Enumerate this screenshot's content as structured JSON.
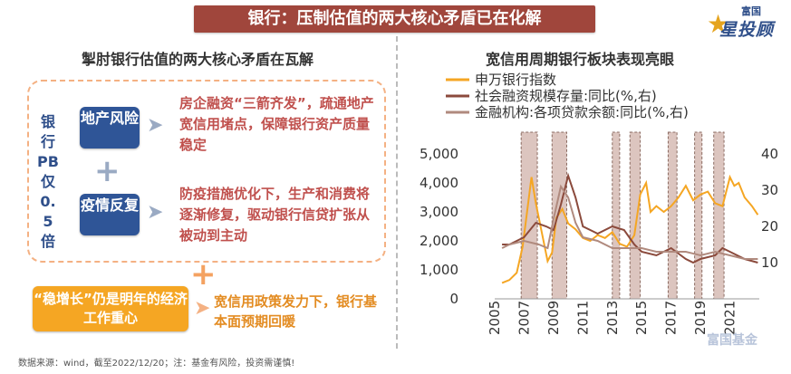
{
  "banner": {
    "title": "银行：压制估值的两大核心矛盾已在化解"
  },
  "logo": {
    "top": "富国",
    "main": "星投顾"
  },
  "left": {
    "heading": "掣肘银行估值的两大核心矛盾在瓦解",
    "pb_label": "银行PB仅0.5倍",
    "boxes": [
      {
        "label": "地产风险",
        "text": "房企融资“三箭齐发”，疏通地产宽信用堵点，保障银行资产质量稳定"
      },
      {
        "label": "疫情反复",
        "text": "防疫措施优化下，生产和消费将逐渐修复，驱动银行信贷扩张从被动到主动"
      }
    ],
    "plus_symbol": "+",
    "bottom_box": "“稳增长”仍是明年的经济工作重心",
    "bottom_text": "宽信用政策发力下，银行基本面预期回暖"
  },
  "right": {
    "heading": "宽信用周期银行板块表现亮眼"
  },
  "chart_data": {
    "type": "line",
    "title": "宽信用周期银行板块表现亮眼",
    "series": [
      {
        "name": "申万银行指数",
        "color": "#f5a623",
        "axis": "left",
        "x": [
          2005.5,
          2006.0,
          2006.5,
          2006.9,
          2007.2,
          2007.5,
          2007.8,
          2008.2,
          2008.6,
          2008.9,
          2009.2,
          2009.6,
          2010.0,
          2010.5,
          2011.0,
          2011.5,
          2012.0,
          2012.5,
          2013.0,
          2013.5,
          2014.0,
          2014.5,
          2014.9,
          2015.3,
          2015.6,
          2016.0,
          2016.5,
          2017.0,
          2017.5,
          2018.0,
          2018.5,
          2019.0,
          2019.5,
          2020.0,
          2020.5,
          2021.0,
          2021.3,
          2021.6,
          2022.0,
          2022.5,
          2022.9
        ],
        "y": [
          550,
          650,
          900,
          1800,
          3000,
          4200,
          3300,
          2300,
          1300,
          1600,
          2800,
          3100,
          2600,
          2400,
          2100,
          2000,
          2200,
          2100,
          2300,
          1900,
          1800,
          2200,
          3600,
          4000,
          3000,
          3200,
          3000,
          3200,
          3500,
          3900,
          3400,
          3600,
          3700,
          3300,
          3200,
          4200,
          3900,
          4000,
          3500,
          3200,
          2900
        ]
      },
      {
        "name": "社会融资规模存量:同比(%,右)",
        "color": "#8b4a3c",
        "axis": "right",
        "x": [
          2005.5,
          2006.0,
          2007.0,
          2007.8,
          2008.5,
          2009.0,
          2009.5,
          2010.0,
          2010.5,
          2011.0,
          2012.0,
          2013.0,
          2013.8,
          2014.5,
          2015.0,
          2016.0,
          2017.0,
          2018.0,
          2018.5,
          2019.0,
          2020.0,
          2020.5,
          2021.0,
          2022.0,
          2022.9
        ],
        "y": [
          15,
          15,
          17,
          21,
          20,
          19,
          26,
          34,
          28,
          20,
          18,
          20,
          19,
          15,
          13,
          12,
          14,
          11,
          10,
          11,
          12,
          14,
          13,
          11,
          10
        ]
      },
      {
        "name": "金融机构:各项贷款余额:同比(%,右)",
        "color": "#b08a7e",
        "axis": "right",
        "x": [
          2005.5,
          2006.0,
          2007.0,
          2008.0,
          2008.6,
          2009.0,
          2009.5,
          2010.0,
          2010.5,
          2011.0,
          2012.0,
          2013.0,
          2014.0,
          2015.0,
          2016.0,
          2017.0,
          2018.0,
          2019.0,
          2020.0,
          2021.0,
          2022.0,
          2022.9
        ],
        "y": [
          14,
          15,
          16,
          15,
          14,
          22,
          31,
          28,
          21,
          17,
          16,
          14,
          14,
          14,
          13,
          13,
          13,
          12,
          13,
          12,
          11,
          11
        ]
      }
    ],
    "x_ticks": [
      "2005",
      "2007",
      "2009",
      "2011",
      "2013",
      "2015",
      "2017",
      "2019",
      "2021"
    ],
    "y_left": {
      "ticks": [
        "0",
        "1,000",
        "2,000",
        "3,000",
        "4,000",
        "5,000"
      ],
      "range": [
        0,
        5000
      ]
    },
    "y_right": {
      "ticks": [
        "10",
        "20",
        "30",
        "40"
      ],
      "range": [
        0,
        40
      ]
    },
    "x_range": [
      2005,
      2023
    ],
    "shaded_periods": [
      [
        2006.8,
        2007.9
      ],
      [
        2008.9,
        2009.9
      ],
      [
        2013.0,
        2013.5
      ],
      [
        2014.2,
        2014.9
      ],
      [
        2016.8,
        2017.4
      ],
      [
        2018.6,
        2019.1
      ],
      [
        2019.9,
        2020.6
      ]
    ],
    "legend_position": "top"
  },
  "footer": {
    "note": "数据来源：wind，截至2022/12/20；注：基金有风险，投资需谨慎!"
  },
  "watermark": {
    "text": "富国基金"
  }
}
